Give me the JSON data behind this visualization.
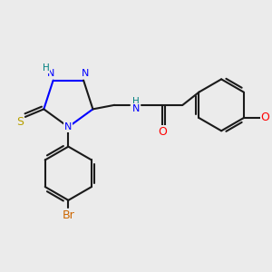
{
  "bg_color": "#ebebeb",
  "bond_color": "#1a1a1a",
  "bond_width": 1.5,
  "atom_colors": {
    "N": "#0000ff",
    "S": "#b8a000",
    "Br": "#cc6600",
    "O": "#ff0000",
    "H_teal": "#008080",
    "C": "#1a1a1a"
  },
  "dbo": 0.055
}
